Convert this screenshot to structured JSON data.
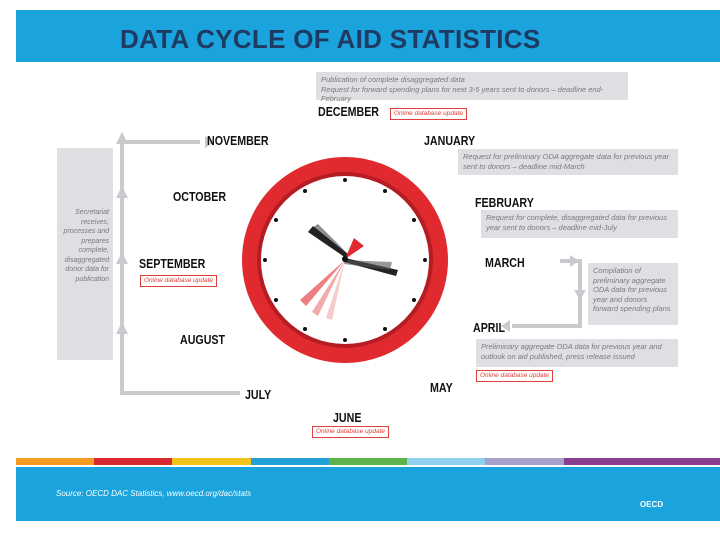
{
  "title": "DATA CYCLE OF AID STATISTICS",
  "months": {
    "december": "DECEMBER",
    "january": "JANUARY",
    "february": "FEBRUARY",
    "march": "MARCH",
    "april": "APRIL",
    "may": "MAY",
    "june": "JUNE",
    "july": "JULY",
    "august": "AUGUST",
    "september": "SEPTEMBER",
    "october": "OCTOBER",
    "november": "NOVEMBER"
  },
  "notes": {
    "december_line1": "Publication of complete disaggregated data",
    "december_line2": "Request for forward spending plans for next 3-5 years sent to donors – deadline end-February",
    "january": "Request for preliminary ODA aggregate data for previous year sent to donors – deadline mid-March",
    "february": "Request for complete, disaggregated data for previous year sent to donors – deadline mid-July",
    "march_april": "Compilation of preliminary aggregate ODA data for previous year and donors forward spending plans",
    "april": "Preliminary aggregate ODA data for previous year and outlook on aid published, press release issued",
    "secretariat": "Secretariat receives, processes and prepares complete, disaggregated donor data for publication"
  },
  "update_label": "Online database update",
  "source": "Source: OECD DAC Statistics, www.oecd.org/dac/stats",
  "logo": "OECD",
  "colors": {
    "header": "#1aa3dc",
    "clock_red": "#e02a2f",
    "title": "#1f3a63",
    "stripe": [
      "#f39c1f",
      "#d7282f",
      "#f0c419",
      "#22a0d8",
      "#5bb34a",
      "#8fd0ec",
      "#a7a0c8",
      "#8a3d8f",
      "#8a3d8f"
    ]
  }
}
